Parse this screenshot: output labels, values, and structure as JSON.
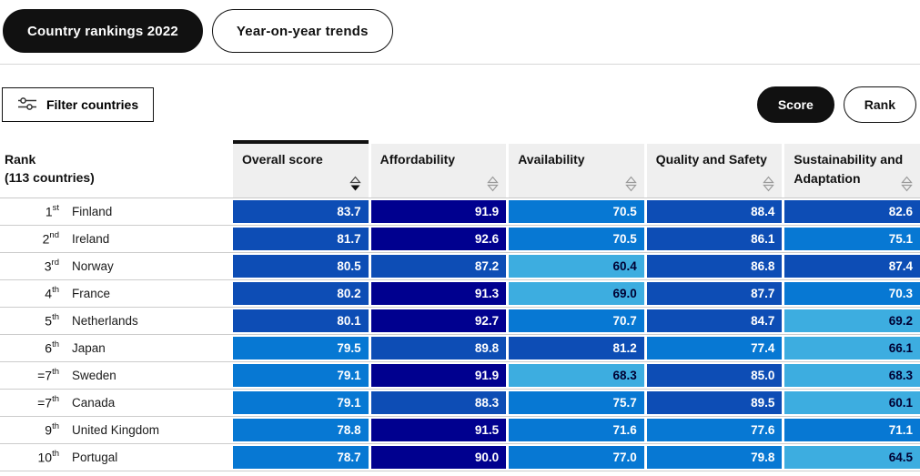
{
  "tabs": [
    {
      "label": "Country rankings 2022",
      "active": true
    },
    {
      "label": "Year-on-year trends",
      "active": false
    }
  ],
  "filter": {
    "label": "Filter countries"
  },
  "view_toggle": [
    {
      "label": "Score",
      "active": true
    },
    {
      "label": "Rank",
      "active": false
    }
  ],
  "table": {
    "rank_header": {
      "line1": "Rank",
      "line2": "(113 countries)"
    },
    "columns": [
      {
        "label": "Overall score",
        "sorted": "desc"
      },
      {
        "label": "Affordability",
        "sorted": null
      },
      {
        "label": "Availability",
        "sorted": null
      },
      {
        "label": "Quality and Safety",
        "sorted": null
      },
      {
        "label": "Sustainability and Adaptation",
        "sorted": null
      }
    ],
    "rows": [
      {
        "rank": "1",
        "ordinal": "st",
        "country": "Finland",
        "values": [
          83.7,
          91.9,
          70.5,
          88.4,
          82.6
        ]
      },
      {
        "rank": "2",
        "ordinal": "nd",
        "country": "Ireland",
        "values": [
          81.7,
          92.6,
          70.5,
          86.1,
          75.1
        ]
      },
      {
        "rank": "3",
        "ordinal": "rd",
        "country": "Norway",
        "values": [
          80.5,
          87.2,
          60.4,
          86.8,
          87.4
        ]
      },
      {
        "rank": "4",
        "ordinal": "th",
        "country": "France",
        "values": [
          80.2,
          91.3,
          69.0,
          87.7,
          70.3
        ]
      },
      {
        "rank": "5",
        "ordinal": "th",
        "country": "Netherlands",
        "values": [
          80.1,
          92.7,
          70.7,
          84.7,
          69.2
        ]
      },
      {
        "rank": "6",
        "ordinal": "th",
        "country": "Japan",
        "values": [
          79.5,
          89.8,
          81.2,
          77.4,
          66.1
        ]
      },
      {
        "rank": "=7",
        "ordinal": "th",
        "country": "Sweden",
        "values": [
          79.1,
          91.9,
          68.3,
          85.0,
          68.3
        ]
      },
      {
        "rank": "=7",
        "ordinal": "th",
        "country": "Canada",
        "values": [
          79.1,
          88.3,
          75.7,
          89.5,
          60.1
        ]
      },
      {
        "rank": "9",
        "ordinal": "th",
        "country": "United Kingdom",
        "values": [
          78.8,
          91.5,
          71.6,
          77.6,
          71.1
        ]
      },
      {
        "rank": "10",
        "ordinal": "th",
        "country": "Portugal",
        "values": [
          78.7,
          90.0,
          77.0,
          79.8,
          64.5
        ]
      }
    ]
  },
  "score_scale": {
    "gte90": "#00008f",
    "gte80": "#0d4db5",
    "gte70": "#0778d3",
    "lt70": "#3dade0",
    "text_light": "#ffffff",
    "text_dark": "#000032"
  },
  "ui_colors": {
    "accent_dark": "#111111",
    "header_bg": "#efefef",
    "row_divider": "#cccccc"
  }
}
